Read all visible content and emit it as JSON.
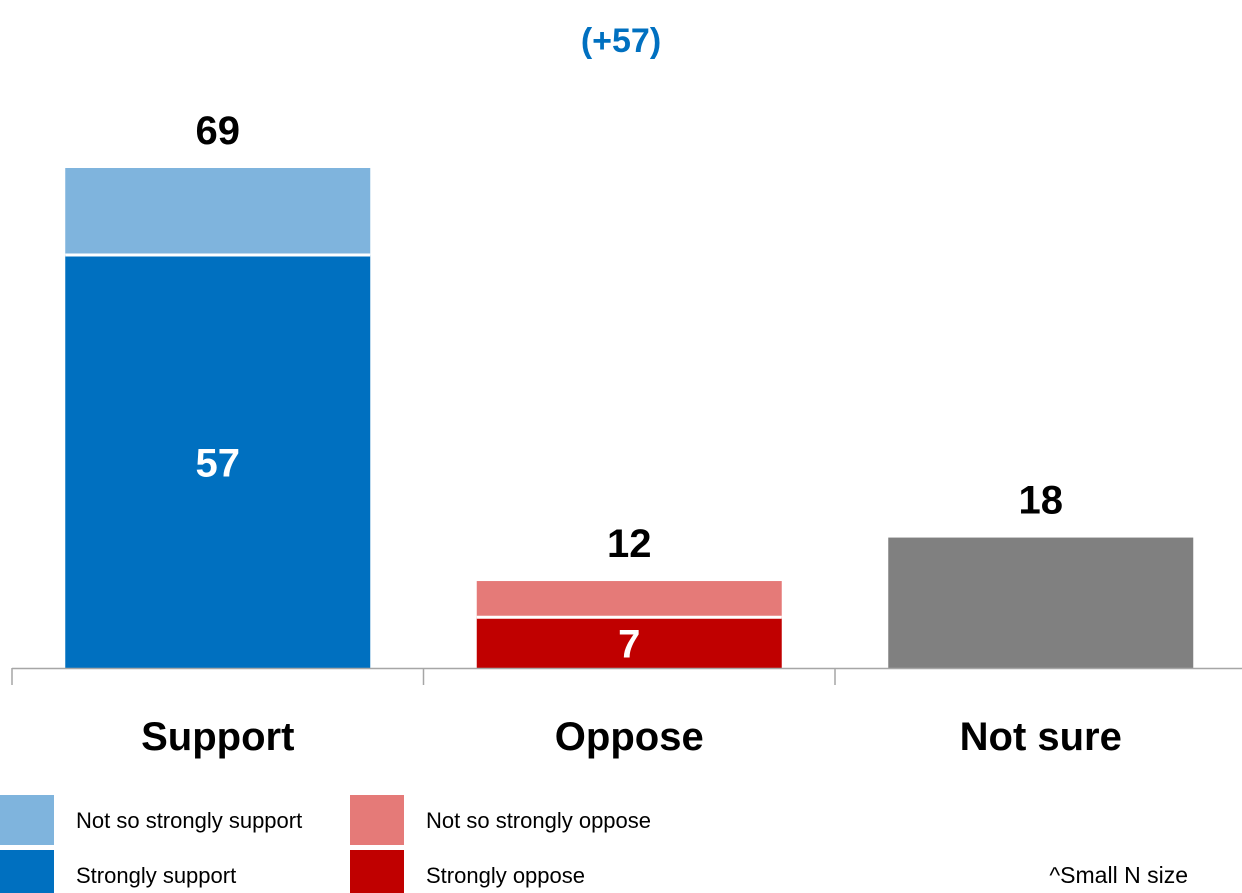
{
  "chart_data": {
    "type": "bar",
    "stacked": true,
    "net_label": "(+57)",
    "categories": [
      "Support",
      "Oppose",
      "Not sure"
    ],
    "totals": [
      69,
      12,
      18
    ],
    "series": [
      {
        "name": "Strongly support",
        "values": [
          57,
          null,
          null
        ],
        "color": "#0070C0"
      },
      {
        "name": "Not so strongly support",
        "values": [
          12,
          null,
          null
        ],
        "color": "#7FB4DD"
      },
      {
        "name": "Strongly oppose",
        "values": [
          null,
          7,
          null
        ],
        "color": "#C00000"
      },
      {
        "name": "Not so strongly oppose",
        "values": [
          null,
          5,
          null
        ],
        "color": "#E57A78"
      },
      {
        "name": "",
        "values": [
          null,
          null,
          18
        ],
        "color": "#808080"
      }
    ],
    "inner_labels": [
      57,
      7,
      null
    ],
    "ylim": [
      0,
      69
    ],
    "grid": false,
    "legend": {
      "placement": "bottom-left",
      "items": [
        {
          "label": "Not so strongly support",
          "color": "#7FB4DD"
        },
        {
          "label": "Strongly support",
          "color": "#0070C0"
        },
        {
          "label": "Not so strongly oppose",
          "color": "#E57A78"
        },
        {
          "label": "Strongly oppose",
          "color": "#C00000"
        }
      ]
    },
    "note": "^Small N size",
    "colors": {
      "net": "#0070C0",
      "axis": "#A6A6A6"
    }
  }
}
